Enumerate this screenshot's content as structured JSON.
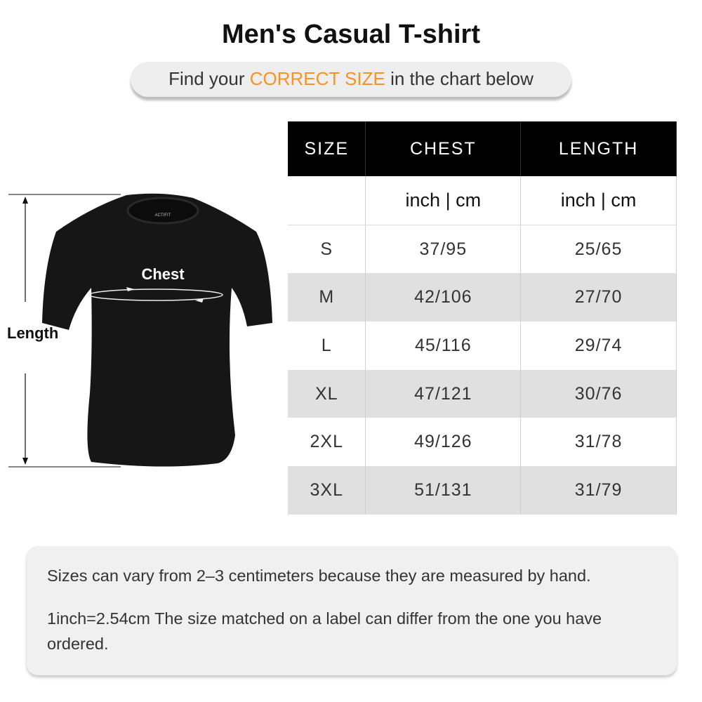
{
  "title": "Men's Casual T-shirt",
  "banner": {
    "prefix": "Find your ",
    "highlight": "CORRECT SIZE",
    "suffix": " in the chart below",
    "highlight_color": "#f7931e"
  },
  "diagram": {
    "chest_label": "Chest",
    "length_label": "Length",
    "brand_logo": "ACTIFIT"
  },
  "table": {
    "headers": [
      "SIZE",
      "CHEST",
      "LENGTH"
    ],
    "units": [
      "",
      "inch | cm",
      "inch | cm"
    ],
    "rows": [
      [
        "S",
        "37/95",
        "25/65"
      ],
      [
        "M",
        "42/106",
        "27/70"
      ],
      [
        "L",
        "45/116",
        "29/74"
      ],
      [
        "XL",
        "47/121",
        "30/76"
      ],
      [
        "2XL",
        "49/126",
        "31/78"
      ],
      [
        "3XL",
        "51/131",
        "31/79"
      ]
    ]
  },
  "notes": [
    "Sizes can vary from 2–3 centimeters because they are measured by hand.",
    "1inch=2.54cm The size matched on a label can differ from the one you have ordered."
  ]
}
